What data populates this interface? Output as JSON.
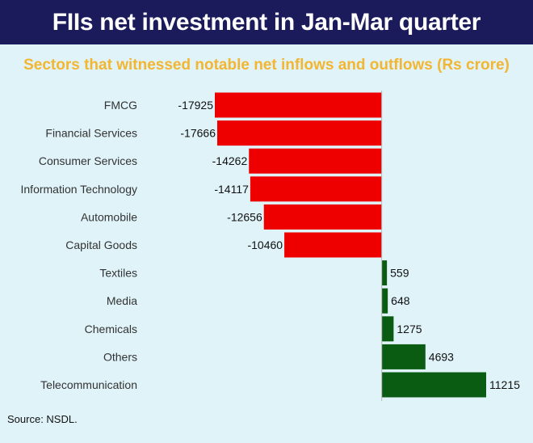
{
  "header": {
    "title": "FIIs net investment in Jan-Mar quarter"
  },
  "chart_data": {
    "type": "bar",
    "orientation": "horizontal",
    "title": "Sectors that witnessed notable net inflows and outflows (Rs crore)",
    "categories": [
      "FMCG",
      "Financial Services",
      "Consumer Services",
      "Information Technology",
      "Automobile",
      "Capital Goods",
      "Textiles",
      "Media",
      "Chemicals",
      "Others",
      "Telecommunication"
    ],
    "values": [
      -17925,
      -17666,
      -14262,
      -14117,
      -12656,
      -10460,
      559,
      648,
      1275,
      4693,
      11215
    ],
    "xlim": [
      -17925,
      11215
    ],
    "colors": {
      "negative": "#ee0000",
      "positive": "#0a5c12"
    },
    "grid": false,
    "legend": "none"
  },
  "footer": {
    "source": "Source: NSDL."
  }
}
